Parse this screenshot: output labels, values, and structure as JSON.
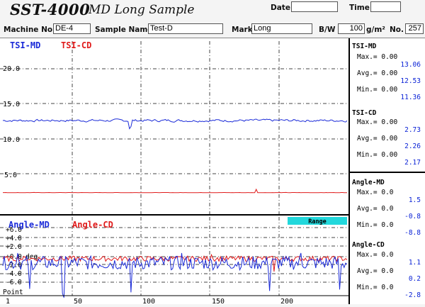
{
  "header": {
    "app_title": "SST-4000",
    "subtitle": "MD Long Sample",
    "date_label": "Date",
    "date_value": "",
    "time_label": "Time",
    "time_value": ""
  },
  "form": {
    "machine_no_label": "Machine No.",
    "machine_no_value": "DE-4",
    "sample_name_label": "Sample Name",
    "sample_name_value": "Test-D",
    "mark_label": "Mark",
    "mark_value": "Long",
    "bw_label": "B/W",
    "bw_value": "100",
    "bw_unit": "g/m²",
    "no_label": "No.",
    "no_value": "257"
  },
  "colors": {
    "md": "#1a2ad8",
    "cd": "#e01a1a",
    "range": "#22d8dc",
    "grid": "#444444"
  },
  "upper_chart": {
    "legend_md": "TSI-MD",
    "legend_cd": "TSI-CD",
    "ytick_labels": [
      "20.0",
      "15.0",
      "10.0",
      "5.0"
    ]
  },
  "lower_chart": {
    "legend_md": "Angle-MD",
    "legend_cd": "Angle-CD",
    "range_button": "Range",
    "ytick_labels": [
      "+6.0",
      "+4.0",
      "+2.0",
      "+0.0",
      "-2.0",
      "-4.0",
      "-6.0"
    ],
    "unit_label": "deg.",
    "xaxis_label": "Point",
    "xtick_labels": [
      "1",
      "50",
      "100",
      "150",
      "200"
    ]
  },
  "chart_data": [
    {
      "type": "line",
      "ylim": [
        0,
        22
      ],
      "xlim": [
        1,
        232
      ],
      "grid": true,
      "series": [
        {
          "name": "TSI-MD",
          "mean": 12.53,
          "max": 13.06,
          "min": 11.36
        },
        {
          "name": "TSI-CD",
          "mean": 2.26,
          "max": 2.73,
          "min": 2.17
        }
      ]
    },
    {
      "type": "line",
      "ylim": [
        -8,
        8
      ],
      "xlim": [
        1,
        232
      ],
      "grid": true,
      "series": [
        {
          "name": "Angle-MD",
          "mean": -0.8,
          "max": 1.5,
          "min": -8.8
        },
        {
          "name": "Angle-CD",
          "mean": 0.2,
          "max": 1.1,
          "min": -2.8
        }
      ]
    }
  ],
  "sidebar": [
    {
      "title": "TSI-MD",
      "max_label": "Max.=",
      "max_val": "13.06",
      "avg_label": "Avg.=",
      "avg_val": "12.53",
      "min_label": "Min.=",
      "min_val": "11.36",
      "zero": "0.00"
    },
    {
      "title": "TSI-CD",
      "max_label": "Max.=",
      "max_val": "2.73",
      "avg_label": "Avg.=",
      "avg_val": "2.26",
      "min_label": "Min.=",
      "min_val": "2.17",
      "zero": "0.00"
    },
    {
      "title": "Angle-MD",
      "max_label": "Max.=",
      "max_val": "1.5",
      "avg_label": "Avg.=",
      "avg_val": "-0.8",
      "min_label": "Min.=",
      "min_val": "-8.8",
      "zero": "0.0"
    },
    {
      "title": "Angle-CD",
      "max_label": "Max.=",
      "max_val": "1.1",
      "avg_label": "Avg.=",
      "avg_val": "0.2",
      "min_label": "Min.=",
      "min_val": "-2.8",
      "zero": "0.0"
    }
  ]
}
